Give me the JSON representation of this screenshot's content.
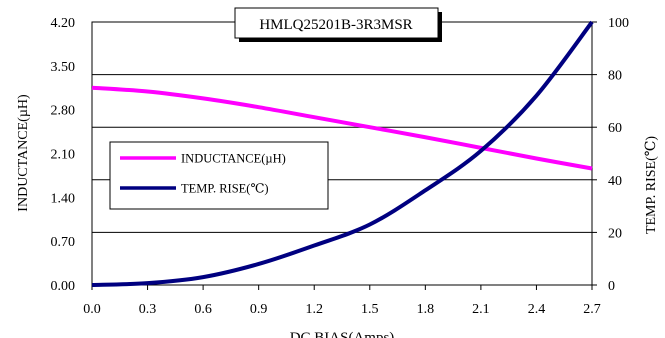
{
  "chart_data": {
    "type": "line",
    "title": "HMLQ25201B-3R3MSR",
    "xlabel": "DC BIAS(Amps)",
    "ylabel_left": "INDUCTANCE(µH)",
    "ylabel_right": "TEMP. RISE(℃)",
    "xlim": [
      0,
      2.7
    ],
    "ylim_left": [
      0,
      4.2
    ],
    "ylim_right": [
      0,
      100
    ],
    "x_ticks": [
      "0.0",
      "0.3",
      "0.6",
      "0.9",
      "1.2",
      "1.5",
      "1.8",
      "2.1",
      "2.4",
      "2.7"
    ],
    "y_left_ticks": [
      "0.00",
      "0.70",
      "1.40",
      "2.10",
      "2.80",
      "3.50",
      "4.20"
    ],
    "y_right_ticks": [
      "0",
      "20",
      "40",
      "60",
      "80",
      "100"
    ],
    "grid": "horizontal",
    "legend": "center-left",
    "series": [
      {
        "name": "INDUCTANCE(µH)",
        "axis": "left",
        "color": "#ff00ff",
        "x": [
          0,
          0.3,
          0.6,
          0.9,
          1.2,
          1.5,
          1.8,
          2.1,
          2.4,
          2.7
        ],
        "y": [
          3.15,
          3.09,
          2.98,
          2.84,
          2.68,
          2.52,
          2.36,
          2.19,
          2.02,
          1.86
        ]
      },
      {
        "name": "TEMP. RISE(℃)",
        "axis": "right",
        "color": "#000080",
        "x": [
          0,
          0.3,
          0.6,
          0.9,
          1.2,
          1.5,
          1.8,
          2.1,
          2.4,
          2.7
        ],
        "y": [
          0,
          0.7,
          3,
          8,
          15,
          23,
          36,
          51,
          72,
          100
        ]
      }
    ]
  }
}
